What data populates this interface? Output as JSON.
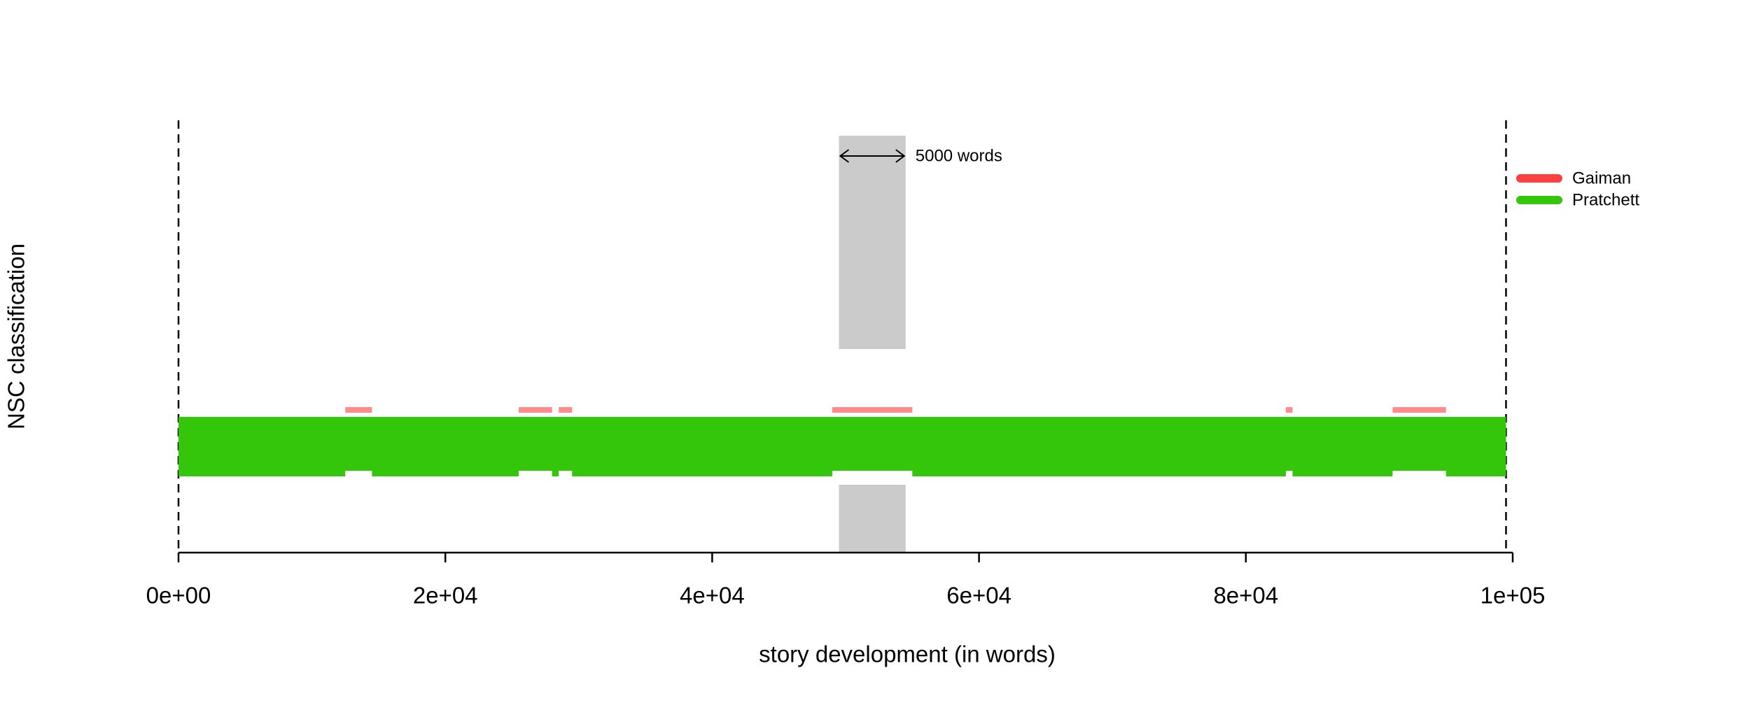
{
  "chart_data": {
    "type": "segment",
    "x_label": "story development (in words)",
    "y_label": "NSC classification",
    "xlim": [
      0,
      100000
    ],
    "xticks": [
      {
        "value": 0,
        "label": "0e+00"
      },
      {
        "value": 20000,
        "label": "2e+04"
      },
      {
        "value": 40000,
        "label": "4e+04"
      },
      {
        "value": 60000,
        "label": "6e+04"
      },
      {
        "value": 80000,
        "label": "8e+04"
      },
      {
        "value": 100000,
        "label": "1e+05"
      }
    ],
    "vlines": [
      0,
      99500
    ],
    "highlight": {
      "start": 49500,
      "end": 54500,
      "label": "5000 words"
    },
    "legend": "top-right",
    "series": [
      {
        "name": "Gaiman",
        "color": "#ff4040",
        "start": [
          12500,
          25500,
          28500,
          49000,
          83000,
          91000
        ],
        "end": [
          14500,
          28000,
          29500,
          55000,
          83500,
          95000
        ]
      },
      {
        "name": "Pratchett",
        "color": "#33c60a",
        "start": [
          0
        ],
        "end": [
          99500
        ]
      }
    ]
  }
}
